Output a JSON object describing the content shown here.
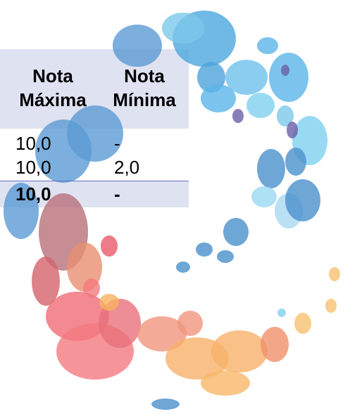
{
  "table": {
    "header": [
      "Nota Máxima",
      "Nota Mínima"
    ],
    "rows": [
      [
        "10,0",
        "-"
      ],
      [
        "10,0",
        "2,0"
      ]
    ],
    "total": [
      "10,0",
      "-"
    ]
  }
}
